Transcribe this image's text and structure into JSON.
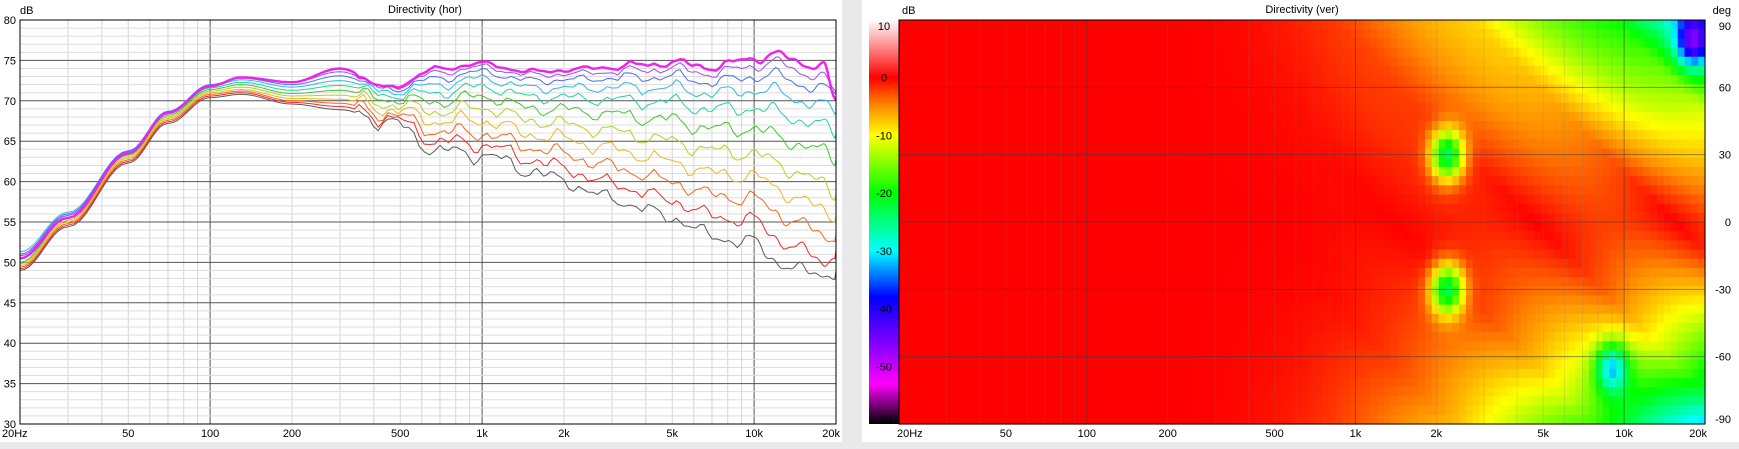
{
  "chart_data": [
    {
      "type": "line",
      "title": "Directivity (hor)",
      "ylabel": "dB",
      "xlabel": "",
      "x_scale": "log",
      "xlim": [
        20,
        20000
      ],
      "ylim": [
        30,
        80
      ],
      "x_ticks": [
        {
          "v": 20,
          "t": "20Hz"
        },
        {
          "v": 50,
          "t": "50"
        },
        {
          "v": 100,
          "t": "100"
        },
        {
          "v": 200,
          "t": "200"
        },
        {
          "v": 500,
          "t": "500"
        },
        {
          "v": 1000,
          "t": "1k"
        },
        {
          "v": 2000,
          "t": "2k"
        },
        {
          "v": 5000,
          "t": "5k"
        },
        {
          "v": 10000,
          "t": "10k"
        },
        {
          "v": 20000,
          "t": "20k"
        }
      ],
      "y_ticks": [
        30,
        35,
        40,
        45,
        50,
        55,
        60,
        65,
        70,
        75,
        80
      ],
      "grid": true,
      "legend": "none",
      "x": [
        20,
        30,
        50,
        70,
        100,
        130,
        200,
        300,
        450,
        700,
        1000,
        1500,
        2000,
        3000,
        5000,
        7000,
        10000,
        12000,
        15000,
        18000,
        20000
      ],
      "series": [
        {
          "color": "#ee22ee",
          "width": 2.4,
          "values": [
            50.5,
            55.5,
            63.5,
            68.5,
            71.8,
            72.9,
            72.3,
            74.0,
            71.6,
            74.0,
            74.6,
            73.6,
            73.8,
            74.2,
            74.7,
            74.2,
            75.2,
            75.8,
            74.6,
            74.4,
            70.0
          ]
        },
        {
          "color": "#a24cf0",
          "width": 1,
          "values": [
            50.8,
            55.8,
            63.7,
            68.6,
            71.9,
            72.9,
            72.3,
            73.6,
            71.6,
            73.5,
            74.2,
            73.2,
            73.3,
            73.6,
            74.0,
            73.4,
            74.3,
            74.8,
            73.5,
            73.0,
            71.0
          ]
        },
        {
          "color": "#4a6ef0",
          "width": 1,
          "values": [
            51.0,
            56.0,
            63.8,
            68.7,
            72.0,
            72.8,
            72.0,
            73.1,
            71.4,
            72.8,
            73.6,
            72.5,
            72.6,
            72.8,
            73.0,
            72.3,
            73.0,
            73.2,
            72.0,
            71.5,
            70.8
          ]
        },
        {
          "color": "#2fb9e6",
          "width": 1,
          "values": [
            51.3,
            56.2,
            63.8,
            68.6,
            71.8,
            72.6,
            71.7,
            72.5,
            71.1,
            72.0,
            72.8,
            71.6,
            71.6,
            71.6,
            71.6,
            70.9,
            71.3,
            71.2,
            70.0,
            69.4,
            68.6
          ]
        },
        {
          "color": "#1fd4a0",
          "width": 1,
          "values": [
            50.4,
            55.8,
            63.5,
            68.4,
            71.6,
            72.3,
            71.3,
            71.9,
            70.7,
            71.0,
            71.8,
            70.5,
            70.4,
            70.1,
            69.8,
            68.9,
            69.1,
            68.6,
            67.6,
            66.8,
            66.0
          ]
        },
        {
          "color": "#40c82c",
          "width": 1,
          "values": [
            50.0,
            55.5,
            63.3,
            68.2,
            71.4,
            72.0,
            70.9,
            71.3,
            70.2,
            69.9,
            70.6,
            69.1,
            68.9,
            68.3,
            67.6,
            66.5,
            66.6,
            65.6,
            64.6,
            63.6,
            62.8
          ]
        },
        {
          "color": "#b4d21e",
          "width": 1,
          "values": [
            49.8,
            55.2,
            63.1,
            68.0,
            71.2,
            71.7,
            70.6,
            70.7,
            69.6,
            68.7,
            69.2,
            67.6,
            67.1,
            66.2,
            65.0,
            63.8,
            63.5,
            62.3,
            61.0,
            59.5,
            58.5
          ]
        },
        {
          "color": "#f0b428",
          "width": 1,
          "values": [
            49.6,
            55.0,
            62.9,
            67.8,
            71.0,
            71.4,
            70.3,
            70.2,
            69.0,
            67.5,
            67.6,
            65.9,
            65.3,
            64.0,
            62.5,
            61.0,
            60.7,
            59.2,
            57.8,
            56.2,
            55.8
          ]
        },
        {
          "color": "#f06a1e",
          "width": 1,
          "values": [
            49.4,
            54.8,
            62.7,
            67.6,
            70.8,
            71.2,
            70.0,
            69.7,
            68.4,
            66.2,
            66.0,
            64.3,
            63.4,
            61.8,
            60.0,
            58.3,
            57.9,
            56.2,
            54.8,
            53.0,
            53.5
          ]
        },
        {
          "color": "#f02a2a",
          "width": 1,
          "values": [
            49.2,
            54.6,
            62.5,
            67.4,
            70.6,
            71.0,
            69.8,
            69.3,
            67.9,
            65.0,
            64.6,
            62.8,
            61.6,
            59.7,
            57.7,
            55.7,
            55.2,
            53.1,
            51.5,
            49.8,
            51.6
          ]
        },
        {
          "color": "#5a5a5a",
          "width": 1,
          "values": [
            49.0,
            54.4,
            62.3,
            67.2,
            70.4,
            70.8,
            69.6,
            68.9,
            67.4,
            63.8,
            63.3,
            61.4,
            60.0,
            57.8,
            55.6,
            53.2,
            52.4,
            50.3,
            48.8,
            48.5,
            49.0
          ]
        }
      ]
    },
    {
      "type": "heatmap",
      "title": "Directivity (ver)",
      "zlabel": "dB",
      "ylabel": "deg",
      "x_scale": "log",
      "xlim": [
        20,
        20000
      ],
      "ylim": [
        -90,
        90
      ],
      "x_ticks": [
        {
          "v": 20,
          "t": "20Hz"
        },
        {
          "v": 50,
          "t": "50"
        },
        {
          "v": 100,
          "t": "100"
        },
        {
          "v": 200,
          "t": "200"
        },
        {
          "v": 500,
          "t": "500"
        },
        {
          "v": 1000,
          "t": "1k"
        },
        {
          "v": 2000,
          "t": "2k"
        },
        {
          "v": 5000,
          "t": "5k"
        },
        {
          "v": 10000,
          "t": "10k"
        },
        {
          "v": 20000,
          "t": "20k"
        }
      ],
      "y_ticks": [
        90,
        60,
        30,
        0,
        -30,
        -60,
        -90
      ],
      "colorbar_ticks": [
        10,
        0,
        -10,
        -20,
        -30,
        -40,
        -50,
        -60
      ],
      "colorbar_range": [
        -60,
        10
      ],
      "colormap": [
        {
          "v": 10,
          "c": "#ffffff"
        },
        {
          "v": 0,
          "c": "#ff0000"
        },
        {
          "v": -5,
          "c": "#ff8c00"
        },
        {
          "v": -10,
          "c": "#ffff00"
        },
        {
          "v": -20,
          "c": "#00ff00"
        },
        {
          "v": -30,
          "c": "#00ffff"
        },
        {
          "v": -38,
          "c": "#0000ff"
        },
        {
          "v": -46,
          "c": "#8000ff"
        },
        {
          "v": -53,
          "c": "#ff00ff"
        },
        {
          "v": -60,
          "c": "#000000"
        }
      ],
      "features": [
        {
          "f": 2200,
          "deg": 30,
          "level": -22
        },
        {
          "f": 2200,
          "deg": -30,
          "level": -22
        },
        {
          "f": 18000,
          "deg": 80,
          "level": -20
        },
        {
          "f": 9000,
          "deg": -65,
          "level": -18
        }
      ],
      "grid": true
    }
  ]
}
